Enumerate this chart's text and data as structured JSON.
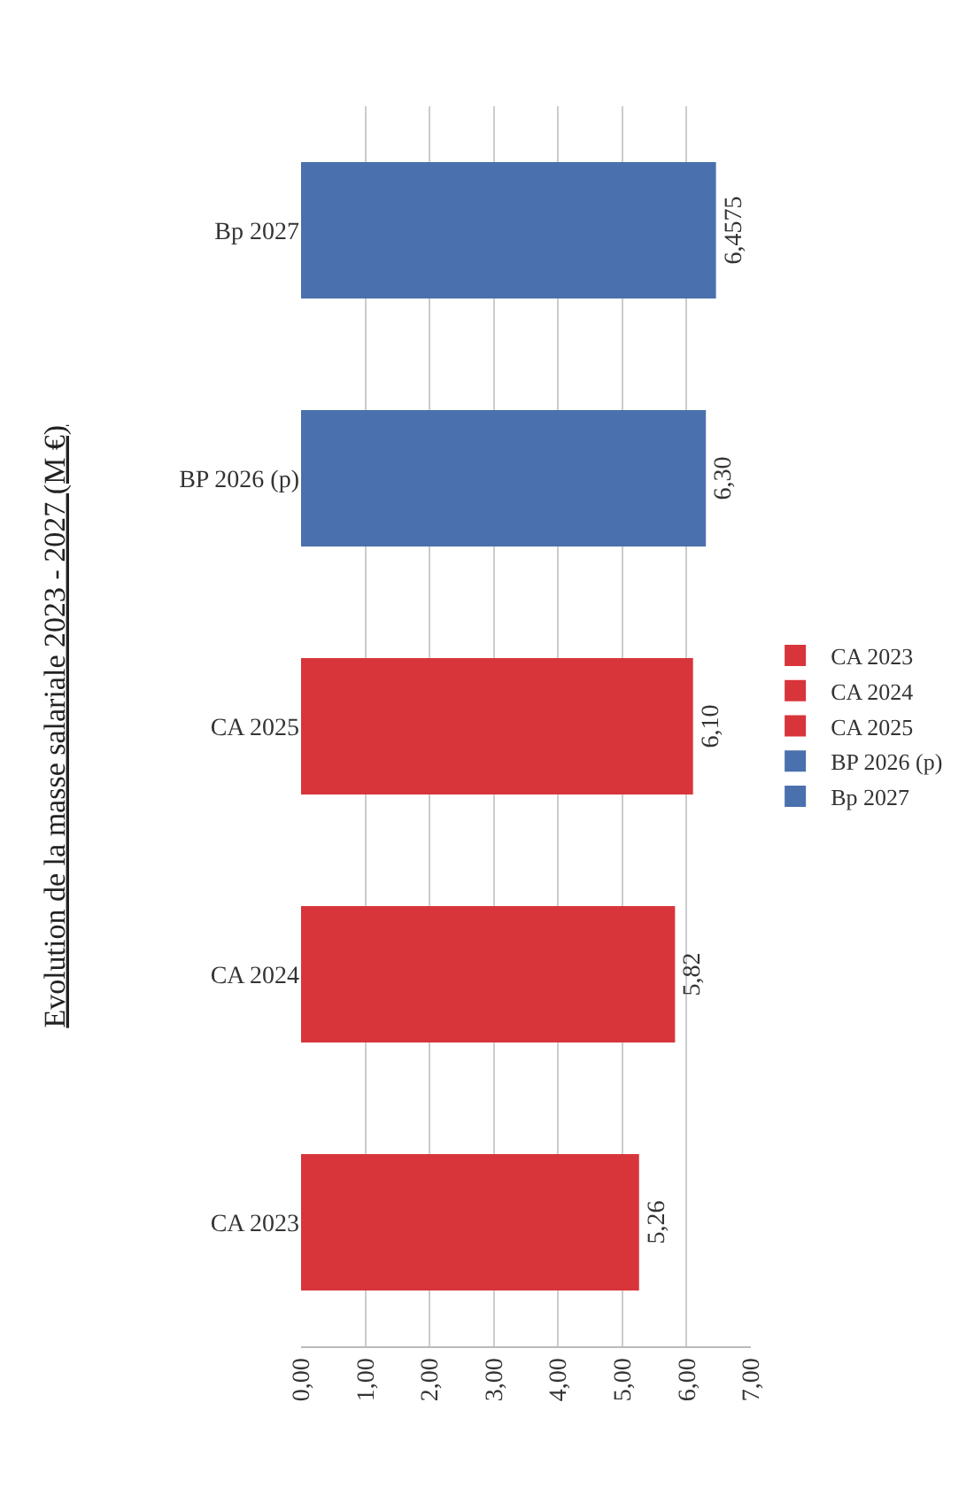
{
  "chart_data": {
    "type": "bar",
    "orientation": "horizontal",
    "title": "Evolution de la masse salariale 2023 - 2027 (M €)",
    "categories": [
      "Bp 2027",
      "BP 2026 (p)",
      "CA 2025",
      "CA 2024",
      "CA 2023"
    ],
    "series": [
      {
        "name": "CA 2023",
        "color": "#d8353b",
        "values": [
          null,
          null,
          null,
          null,
          5.26
        ],
        "value_labels": [
          null,
          null,
          null,
          null,
          "5,26"
        ]
      },
      {
        "name": "CA 2024",
        "color": "#d8353b",
        "values": [
          null,
          null,
          null,
          5.82,
          null
        ],
        "value_labels": [
          null,
          null,
          null,
          "5,82",
          null
        ]
      },
      {
        "name": "CA 2025",
        "color": "#d8353b",
        "values": [
          null,
          null,
          6.1,
          null,
          null
        ],
        "value_labels": [
          null,
          null,
          "6,10",
          null,
          null
        ]
      },
      {
        "name": "BP 2026 (p)",
        "color": "#4a70ad",
        "values": [
          null,
          6.3,
          null,
          null,
          null
        ],
        "value_labels": [
          null,
          "6,30",
          null,
          null,
          null
        ]
      },
      {
        "name": "Bp 2027",
        "color": "#4a70ad",
        "values": [
          6.4575,
          null,
          null,
          null,
          null
        ],
        "value_labels": [
          "6,4575",
          null,
          null,
          null,
          null
        ]
      }
    ],
    "xlim": [
      0,
      7
    ],
    "xticks": [
      {
        "value": 0,
        "label": "0,00"
      },
      {
        "value": 1,
        "label": "1,00"
      },
      {
        "value": 2,
        "label": "2,00"
      },
      {
        "value": 3,
        "label": "3,00"
      },
      {
        "value": 4,
        "label": "4,00"
      },
      {
        "value": 5,
        "label": "5,00"
      },
      {
        "value": 6,
        "label": "6,00"
      },
      {
        "value": 7,
        "label": "7,00"
      }
    ],
    "grid": "x",
    "legend": "right"
  }
}
